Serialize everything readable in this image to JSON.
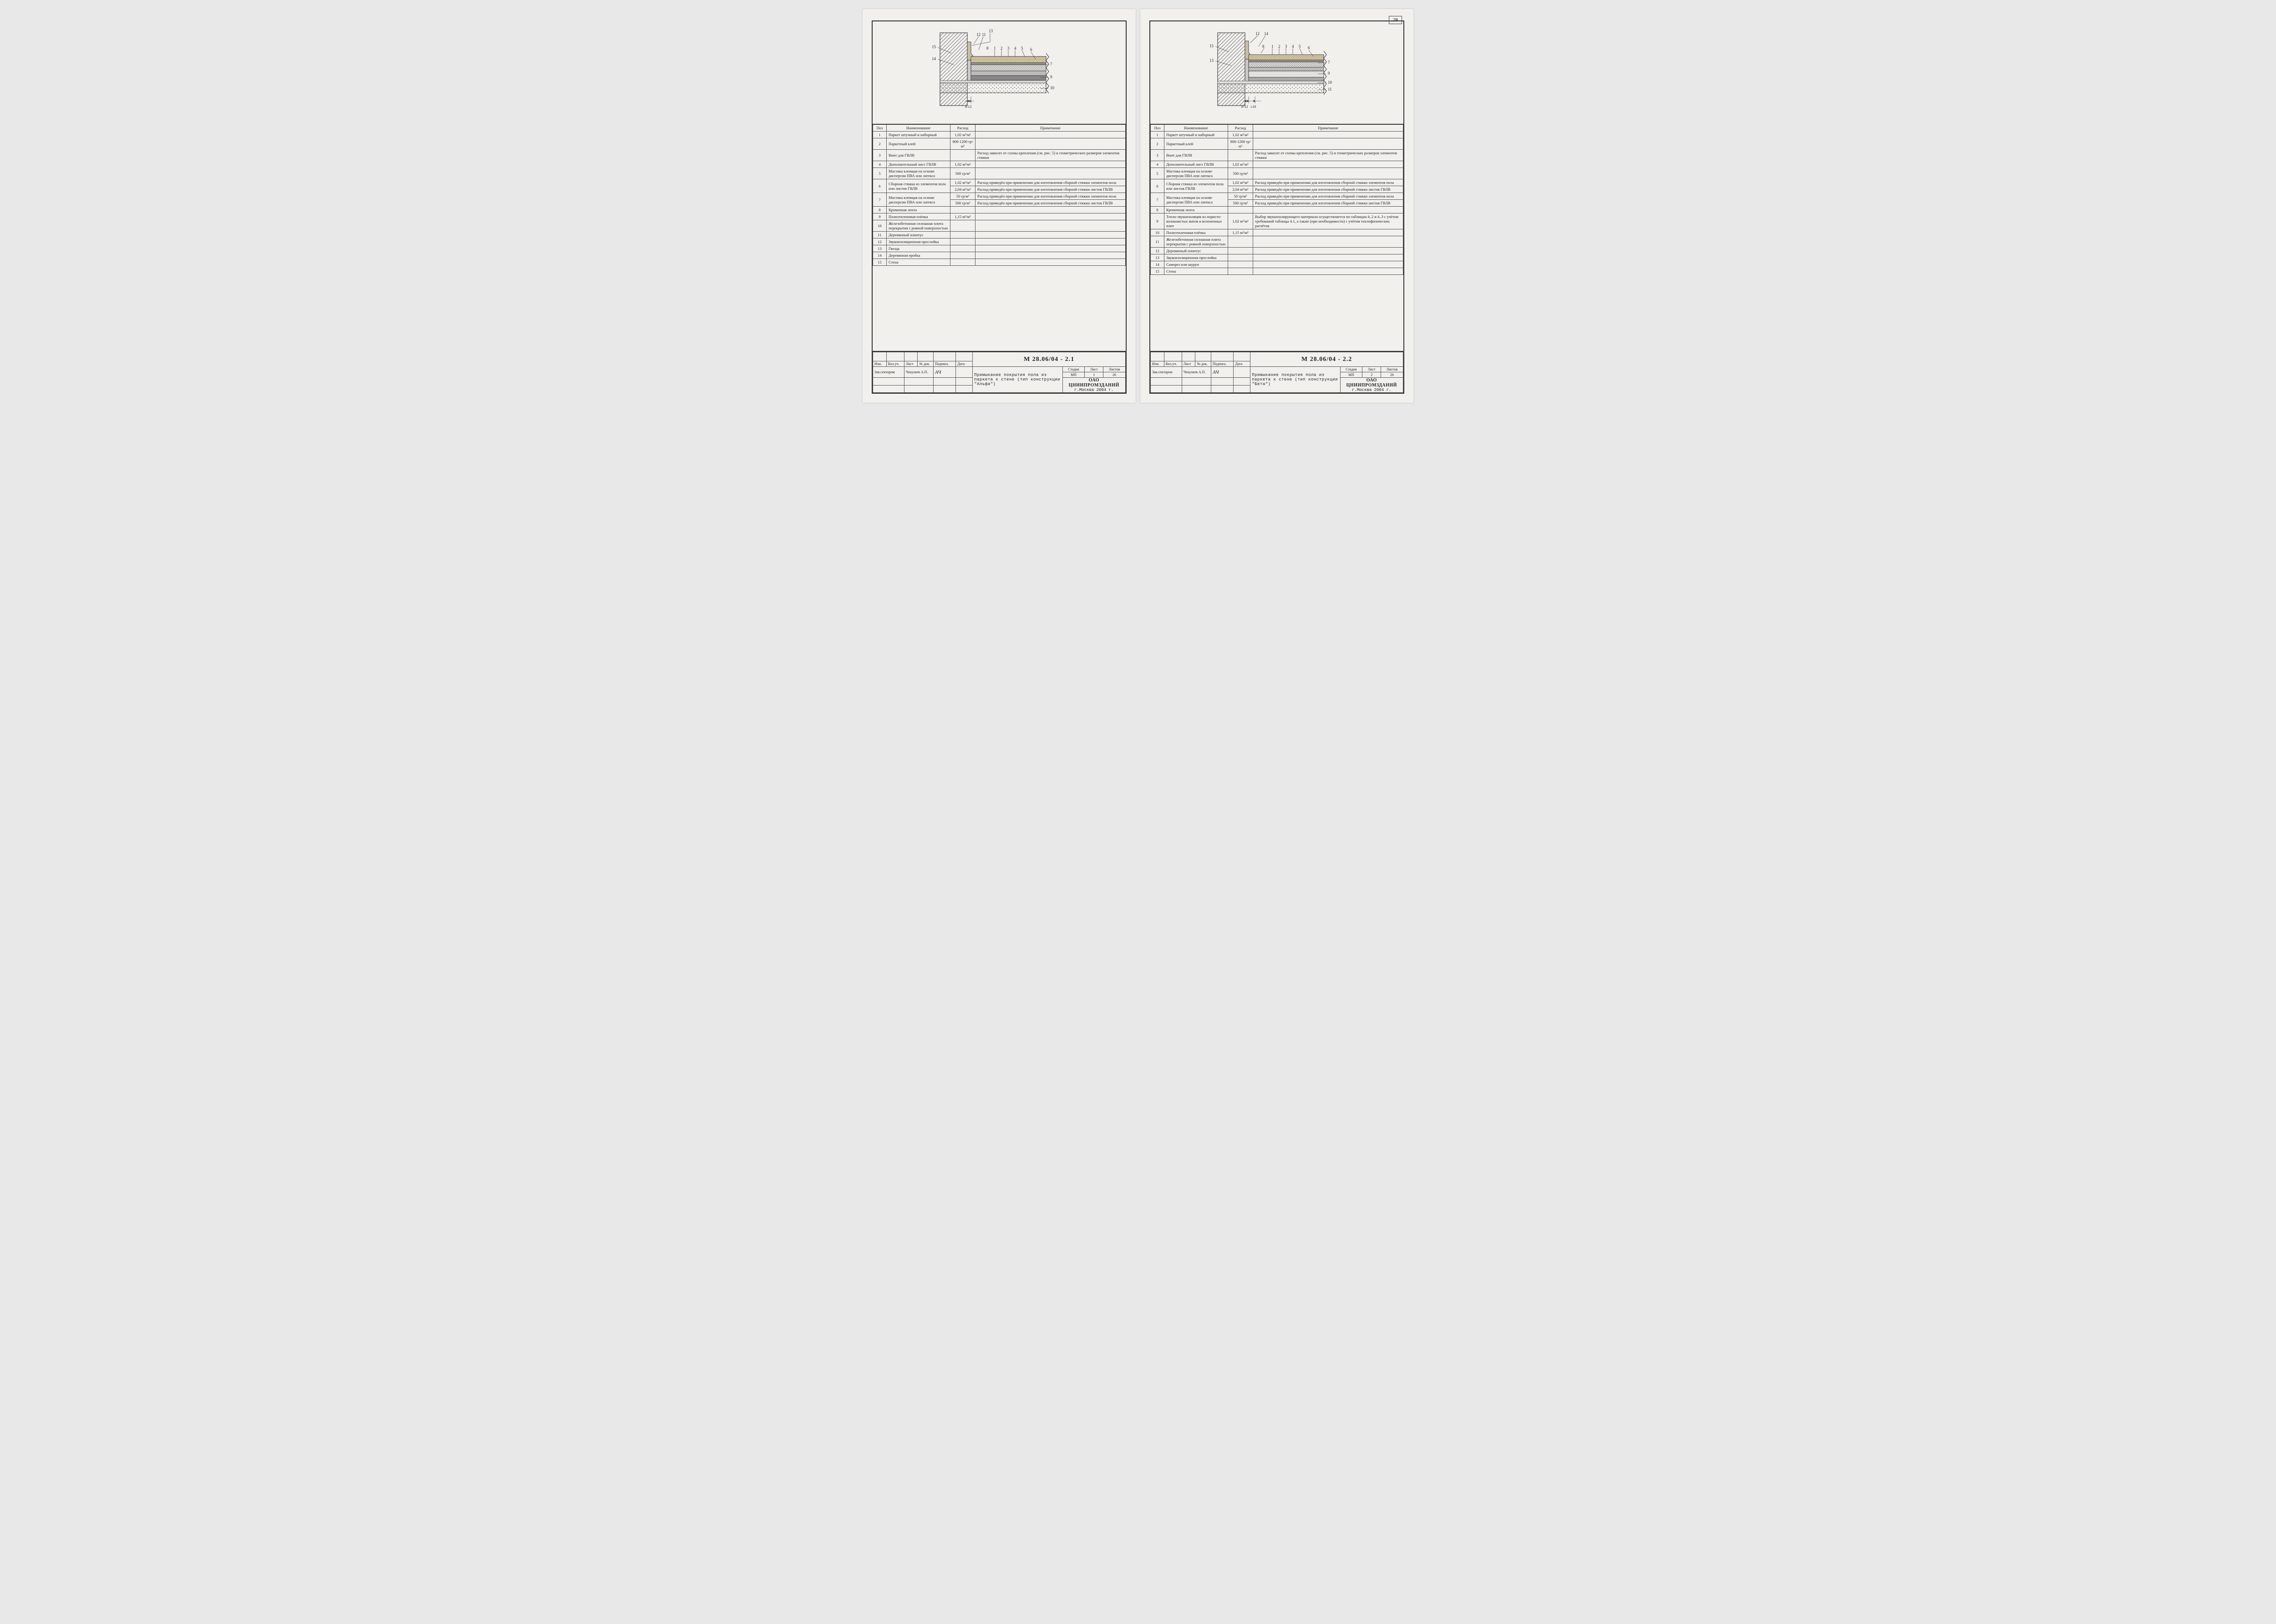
{
  "page_number": "28",
  "organization": "ОАО ЦНИИПРОМЗДАНИЙ",
  "org_location": "г.Москва 2004 г.",
  "common": {
    "table_headers": {
      "pos": "Поз",
      "name": "Наименование",
      "rate": "Расход",
      "note": "Примечание"
    },
    "tb_headers": {
      "izm": "Изм.",
      "kol": "Кол.уч.",
      "list": "Лист",
      "ndok": "№ док.",
      "podpis": "Подпись",
      "data": "Дата",
      "stadia": "Стадия",
      "list2": "Лист",
      "listov": "Листов",
      "zav": "Зав.сектором",
      "zav_name": "Чекулаев А.П."
    }
  },
  "left": {
    "code": "М 28.06/04 - 2.1",
    "title": "Примыкание покрытия пола из паркета к стене (тип конструкции \"Альфа\")",
    "stadia": "МП",
    "list": "1",
    "listov": "26",
    "diagram_callouts_top": [
      "13",
      "12",
      "11",
      "8",
      "1",
      "2",
      "3",
      "4",
      "5",
      "6"
    ],
    "diagram_callouts_left": [
      "15",
      "14"
    ],
    "diagram_callouts_right": [
      "7",
      "9",
      "10"
    ],
    "diagram_dim": "8-12",
    "rows": [
      {
        "pos": "1",
        "span": 1,
        "name": "Паркет штучный и наборный",
        "rate": "1,02 м²/м²",
        "note": ""
      },
      {
        "pos": "2",
        "span": 1,
        "name": "Паркетный клей",
        "rate": "800-1200 гр/м²",
        "note": ""
      },
      {
        "pos": "3",
        "span": 1,
        "name": "Винт для ГВЛВ",
        "rate": "",
        "note": "Расход зависит от схемы крепления (см. рис. 5) и геометрических размеров элементов стяжки"
      },
      {
        "pos": "4",
        "span": 1,
        "name": "Дополнительный лист ГВЛВ",
        "rate": "1,02 м²/м²",
        "note": ""
      },
      {
        "pos": "5",
        "span": 1,
        "name": "Мастика клеящая на основе дисперсии ПВА или латекса",
        "rate": "500 гр/м²",
        "note": ""
      },
      {
        "pos": "6",
        "span": 2,
        "name": "Сборная стяжка из элементов пола или листов ГВЛВ",
        "subs": [
          {
            "rate": "1,02 м²/м²",
            "note": "Расход приведён при применении для изготовления сборной стяжки элементов пола"
          },
          {
            "rate": "2,04 м²/м²",
            "note": "Расход приведён при применении для изготовления сборной стяжки листов ГВЛВ"
          }
        ]
      },
      {
        "pos": "7",
        "span": 2,
        "name": "Мастика клеящая на основе дисперсии ПВА или латекса",
        "subs": [
          {
            "rate": "50 гр/м²",
            "note": "Расход приведён при применении для изготовления сборной стяжки элементов пола"
          },
          {
            "rate": "500 гр/м²",
            "note": "Расход приведён при применении для изготовления сборной стяжки листов ГВЛВ"
          }
        ]
      },
      {
        "pos": "8",
        "span": 1,
        "name": "Кромочная лента",
        "rate": "",
        "note": ""
      },
      {
        "pos": "9",
        "span": 1,
        "name": "Полиэтиленовая плёнка",
        "rate": "1,15 м²/м²",
        "note": ""
      },
      {
        "pos": "10",
        "span": 1,
        "name": "Железобетонная сплошная плита перекрытия с ровной поверхностью",
        "rate": "",
        "note": ""
      },
      {
        "pos": "11",
        "span": 1,
        "name": "Деревянный плинтус",
        "rate": "",
        "note": ""
      },
      {
        "pos": "12",
        "span": 1,
        "name": "Звукоизоляционная прослойка",
        "rate": "",
        "note": ""
      },
      {
        "pos": "13",
        "span": 1,
        "name": "Гвоздь",
        "rate": "",
        "note": ""
      },
      {
        "pos": "14",
        "span": 1,
        "name": "Деревянная пробка",
        "rate": "",
        "note": ""
      },
      {
        "pos": "15",
        "span": 1,
        "name": "Стена",
        "rate": "",
        "note": ""
      }
    ]
  },
  "right": {
    "code": "М 28.06/04 - 2.2",
    "title": "Примыкание покрытия пола из паркета к стене (тип конструкции \"Бета\")",
    "stadia": "МП",
    "list": "2",
    "listov": "26",
    "diagram_callouts_top": [
      "12",
      "14",
      "8",
      "1",
      "2",
      "3",
      "4",
      "5",
      "6"
    ],
    "diagram_callouts_left": [
      "15",
      "13"
    ],
    "diagram_callouts_right": [
      "7",
      "9",
      "10",
      "11"
    ],
    "diagram_dim1": "8-12",
    "diagram_dim2": "≥10",
    "rows": [
      {
        "pos": "1",
        "span": 1,
        "name": "Паркет штучный и наборный",
        "rate": "1,02 м²/м²",
        "note": ""
      },
      {
        "pos": "2",
        "span": 1,
        "name": "Паркетный клей",
        "rate": "800-1200 гр/м²",
        "note": ""
      },
      {
        "pos": "3",
        "span": 1,
        "name": "Винт для ГВЛВ",
        "rate": "",
        "note": "Расход зависит от схемы крепления (см. рис. 5) и геометрических размеров элементов стяжки"
      },
      {
        "pos": "4",
        "span": 1,
        "name": "Дополнительный лист ГВЛВ",
        "rate": "1,02 м²/м²",
        "note": ""
      },
      {
        "pos": "5",
        "span": 1,
        "name": "Мастика клеящая на основе дисперсии ПВА или латекса",
        "rate": "500 гр/м²",
        "note": ""
      },
      {
        "pos": "6",
        "span": 2,
        "name": "Сборная стяжка из элементов пола или листов ГВЛВ",
        "subs": [
          {
            "rate": "1,02 м²/м²",
            "note": "Расход приведён при применении для изготовления сборной стяжки элементов пола"
          },
          {
            "rate": "2,04 м²/м²",
            "note": "Расход приведён при применении для изготовления сборной стяжки листов ГВЛВ"
          }
        ]
      },
      {
        "pos": "7",
        "span": 2,
        "name": "Мастика клеящая на основе дисперсии ПВА или латекса",
        "subs": [
          {
            "rate": "50 гр/м²",
            "note": "Расход приведён при применении для изготовления сборной стяжки элементов пола"
          },
          {
            "rate": "500 гр/м²",
            "note": "Расход приведён при применении для изготовления сборной стяжки листов ГВЛВ"
          }
        ]
      },
      {
        "pos": "8",
        "span": 1,
        "name": "Кромочная лента",
        "rate": "",
        "note": ""
      },
      {
        "pos": "9",
        "span": 1,
        "name": "Тепло-звукоизоляция из пористо-волокнистых матов и вспененных плит",
        "rate": "1,02 м²/м²",
        "note": "Выбор звукоизолирующего материала осуществляется по таблицам 4..2 и 4..3 с учётом требований таблицы 4.1, а также (при необходимости) с учётом теплофизических расчётов"
      },
      {
        "pos": "10",
        "span": 1,
        "name": "Полиэтиленовая плёнка",
        "rate": "1,15 м²/м²",
        "note": ""
      },
      {
        "pos": "11",
        "span": 1,
        "name": "Железобетонная сплошная плита перекрытия с ровной поверхностью",
        "rate": "",
        "note": ""
      },
      {
        "pos": "12",
        "span": 1,
        "name": "Деревянный плинтус",
        "rate": "",
        "note": ""
      },
      {
        "pos": "13",
        "span": 1,
        "name": "Звукоизоляционная прослойка",
        "rate": "",
        "note": ""
      },
      {
        "pos": "14",
        "span": 1,
        "name": "Саморез или шуруп",
        "rate": "",
        "note": ""
      },
      {
        "pos": "15",
        "span": 1,
        "name": "Стена",
        "rate": "",
        "note": ""
      }
    ]
  },
  "diagram_style": {
    "stroke": "#222",
    "stroke_width": 1,
    "hatch_color": "#333",
    "layer_colors": {
      "parquet": "#d4c8a8",
      "glue": "#888",
      "gvl": "#c8c0b0",
      "screed": "#aaa",
      "crosshatch": "#555",
      "film": "#666",
      "concrete": "#ddd6cc",
      "insulation": "#bbb"
    }
  }
}
